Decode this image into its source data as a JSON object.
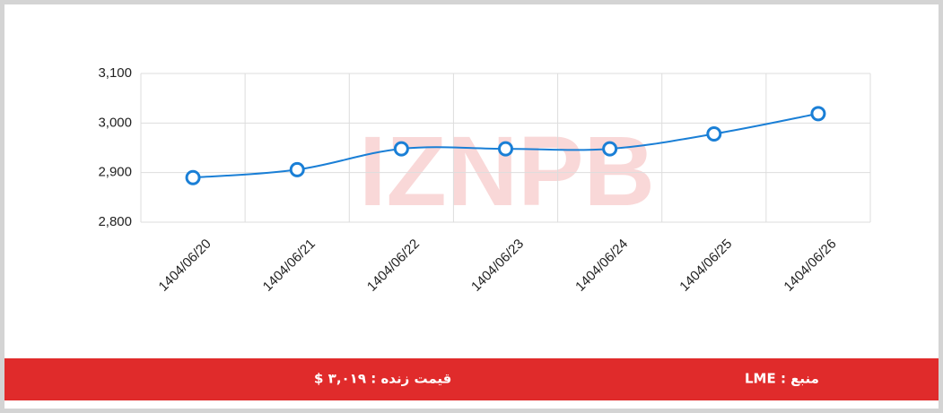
{
  "chart_data": {
    "type": "line",
    "categories": [
      "1404/06/20",
      "1404/06/21",
      "1404/06/22",
      "1404/06/23",
      "1404/06/24",
      "1404/06/25",
      "1404/06/26"
    ],
    "series": [
      {
        "name": "LME",
        "color": "#1a7fd6",
        "values": [
          2890,
          2906,
          2948,
          2948,
          2948,
          2978,
          3019
        ]
      }
    ],
    "ylim": [
      2800,
      3100
    ],
    "yticks": [
      {
        "value": 2800,
        "label": "2,800"
      },
      {
        "value": 2900,
        "label": "2,900"
      },
      {
        "value": 3000,
        "label": "3,000"
      },
      {
        "value": 3100,
        "label": "3,100"
      }
    ],
    "grid": true
  },
  "watermark": "IZNPB",
  "footer": {
    "live_price": "قیمت زنده : ۳,۰۱۹ $",
    "source": "منبع : LME"
  }
}
